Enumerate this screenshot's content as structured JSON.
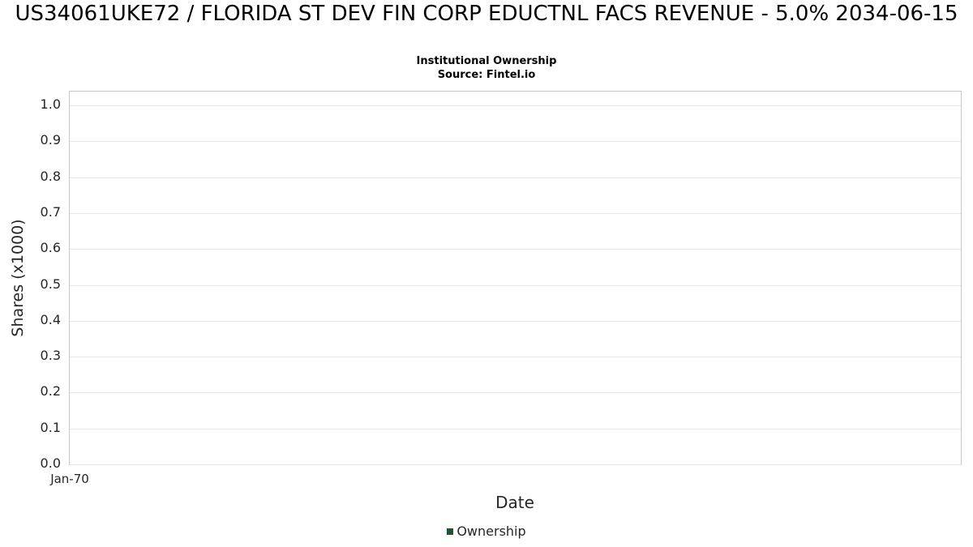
{
  "header": {
    "title": "US34061UKE72 / FLORIDA ST DEV FIN CORP EDUCTNL FACS REVENUE - 5.0% 2034-06-15",
    "subtitle": "Institutional Ownership",
    "source": "Source: Fintel.io"
  },
  "chart_data": {
    "type": "line",
    "title": "US34061UKE72 / FLORIDA ST DEV FIN CORP EDUCTNL FACS REVENUE - 5.0% 2034-06-15",
    "subtitle": "Institutional Ownership",
    "source": "Source: Fintel.io",
    "xlabel": "Date",
    "ylabel": "Shares (x1000)",
    "x_ticks": [
      "Jan-70"
    ],
    "y_ticks": [
      0.0,
      0.1,
      0.2,
      0.3,
      0.4,
      0.5,
      0.6,
      0.7,
      0.8,
      0.9,
      1.0
    ],
    "ylim": [
      0.0,
      1.04
    ],
    "grid": true,
    "legend_position": "bottom",
    "legend_labels": [
      "Ownership"
    ],
    "series": [
      {
        "name": "Ownership",
        "x": [],
        "y": [],
        "color": "#1a5632",
        "note": "no data points plotted - empty chart"
      }
    ]
  },
  "colors": {
    "grid": "#e6e6e6",
    "axis_border": "#c8c8c8",
    "legend_marker": "#1a5632",
    "text": "#262626"
  }
}
